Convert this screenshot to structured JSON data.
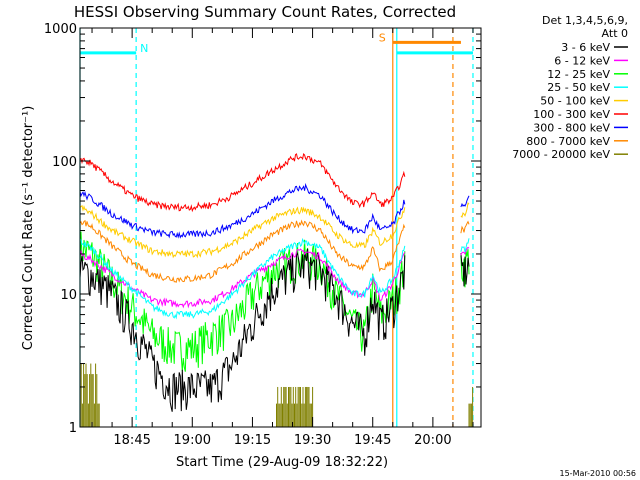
{
  "chart_data": {
    "type": "line",
    "title": "HESSI Observing Summary Count Rates, Corrected",
    "xlabel": "Start Time (29-Aug-09 18:32:22)",
    "ylabel": "Corrected Count Rate (s⁻¹ detector⁻¹)",
    "yscale": "log",
    "ylim": [
      1,
      1000
    ],
    "yticks": [
      {
        "value": 1,
        "label": "1"
      },
      {
        "value": 10,
        "label": "10"
      },
      {
        "value": 100,
        "label": "100"
      },
      {
        "value": 1000,
        "label": "1000"
      }
    ],
    "xlim": [
      "18:32",
      "20:12"
    ],
    "xticks": [
      "18:45",
      "19:00",
      "19:15",
      "19:30",
      "19:45",
      "20:00"
    ],
    "legend_header": [
      "Det 1,3,4,5,6,9,",
      "Att 0"
    ],
    "legend_placement": "right",
    "data_gap": [
      "19:53",
      "20:07"
    ],
    "x": [
      "18:32",
      "18:35",
      "18:40",
      "18:45",
      "18:50",
      "18:55",
      "19:00",
      "19:05",
      "19:10",
      "19:15",
      "19:20",
      "19:25",
      "19:28",
      "19:32",
      "19:36",
      "19:40",
      "19:43",
      "19:45",
      "19:47",
      "19:50",
      "19:53",
      "20:08",
      "20:09"
    ],
    "series": [
      {
        "name": "3 - 6 keV",
        "color": "#000000",
        "values": [
          15,
          14,
          10,
          6,
          3,
          2,
          2,
          2,
          3,
          6,
          11,
          15,
          17,
          15,
          10,
          6,
          5,
          10,
          6,
          8,
          15,
          15,
          17
        ]
      },
      {
        "name": "6 - 12 keV",
        "color": "#ff00ff",
        "values": [
          20,
          18,
          14,
          11,
          9,
          8.5,
          8.5,
          9,
          11,
          14,
          17,
          20,
          21,
          19,
          13,
          10,
          10,
          13,
          9,
          12,
          20,
          20,
          23
        ]
      },
      {
        "name": "12 - 25 keV",
        "color": "#00ff00",
        "values": [
          23,
          20,
          13,
          8,
          5,
          4,
          4,
          5,
          6,
          10,
          15,
          18,
          19,
          17,
          10,
          6,
          5,
          11,
          7,
          9,
          16,
          17,
          19
        ]
      },
      {
        "name": "25 - 50 keV",
        "color": "#00ffff",
        "values": [
          25,
          22,
          15,
          11,
          8,
          7,
          7,
          7.5,
          10,
          14,
          19,
          23,
          25,
          22,
          14,
          10,
          10,
          14,
          10,
          13,
          22,
          22,
          25
        ]
      },
      {
        "name": "50 - 100 keV",
        "color": "#ffcc00",
        "values": [
          45,
          40,
          30,
          25,
          21,
          20,
          20,
          21,
          24,
          30,
          37,
          42,
          43,
          38,
          28,
          23,
          23,
          30,
          24,
          28,
          45,
          40,
          48
        ]
      },
      {
        "name": "100 - 300 keV",
        "color": "#ff0000",
        "values": [
          105,
          95,
          70,
          55,
          47,
          45,
          45,
          47,
          55,
          68,
          85,
          105,
          110,
          95,
          65,
          48,
          48,
          58,
          47,
          52,
          80,
          0,
          0
        ]
      },
      {
        "name": "300 - 800 keV",
        "color": "#0000ff",
        "values": [
          58,
          52,
          40,
          33,
          29,
          28,
          28,
          29,
          33,
          40,
          50,
          60,
          63,
          55,
          38,
          30,
          30,
          38,
          30,
          33,
          50,
          45,
          52
        ]
      },
      {
        "name": "800 - 7000 keV",
        "color": "#ff8800",
        "values": [
          36,
          32,
          23,
          17,
          14,
          13,
          13,
          14,
          17,
          22,
          28,
          33,
          35,
          30,
          20,
          16,
          16,
          22,
          15,
          18,
          33,
          30,
          35
        ]
      },
      {
        "name": "7000 - 20000 keV",
        "color": "#808000",
        "values": [
          null,
          null,
          null,
          null,
          null,
          null,
          null,
          null,
          null,
          null,
          null,
          null,
          null,
          null,
          null,
          null,
          null,
          null,
          null,
          null,
          null,
          null,
          null
        ]
      }
    ],
    "olive_bursts": [
      {
        "start": "18:32",
        "end": "18:37",
        "max": 3
      },
      {
        "start": "19:21",
        "end": "19:30",
        "max": 2
      },
      {
        "start": "20:09",
        "end": "20:10",
        "max": 2
      }
    ],
    "flags": [
      {
        "label": "N",
        "start": "18:32",
        "end": "18:46",
        "color": "#00ffff",
        "level": 650
      },
      {
        "label": "S",
        "start": "19:50",
        "end": "20:07",
        "color": "#ff8800",
        "level": 780
      },
      {
        "label": "",
        "start": "19:51",
        "end": "20:10",
        "color": "#00ffff",
        "level": 650
      }
    ],
    "footer": "15-Mar-2010 00:56"
  }
}
